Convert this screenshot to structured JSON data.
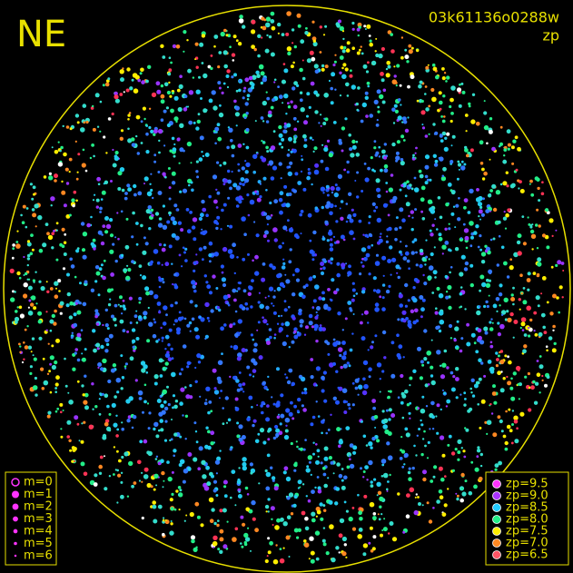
{
  "header": {
    "direction": "NE",
    "image_id": "03k61136o0288w",
    "subtitle": "zp"
  },
  "magnitude_legend": {
    "items": [
      {
        "label": "m=0"
      },
      {
        "label": "m=1"
      },
      {
        "label": "m=2"
      },
      {
        "label": "m=3"
      },
      {
        "label": "m=4"
      },
      {
        "label": "m=5"
      },
      {
        "label": "m=6"
      }
    ]
  },
  "zp_legend": {
    "items": [
      {
        "label": "zp=9.5",
        "color": "#ff33ff"
      },
      {
        "label": "zp=9.0",
        "color": "#aa33ff"
      },
      {
        "label": "zp=8.5",
        "color": "#22ccff"
      },
      {
        "label": "zp=8.0",
        "color": "#22ee88"
      },
      {
        "label": "zp=7.5",
        "color": "#ffee00"
      },
      {
        "label": "zp=7.0",
        "color": "#ff8822"
      },
      {
        "label": "zp=6.5",
        "color": "#ff5566"
      }
    ]
  }
}
